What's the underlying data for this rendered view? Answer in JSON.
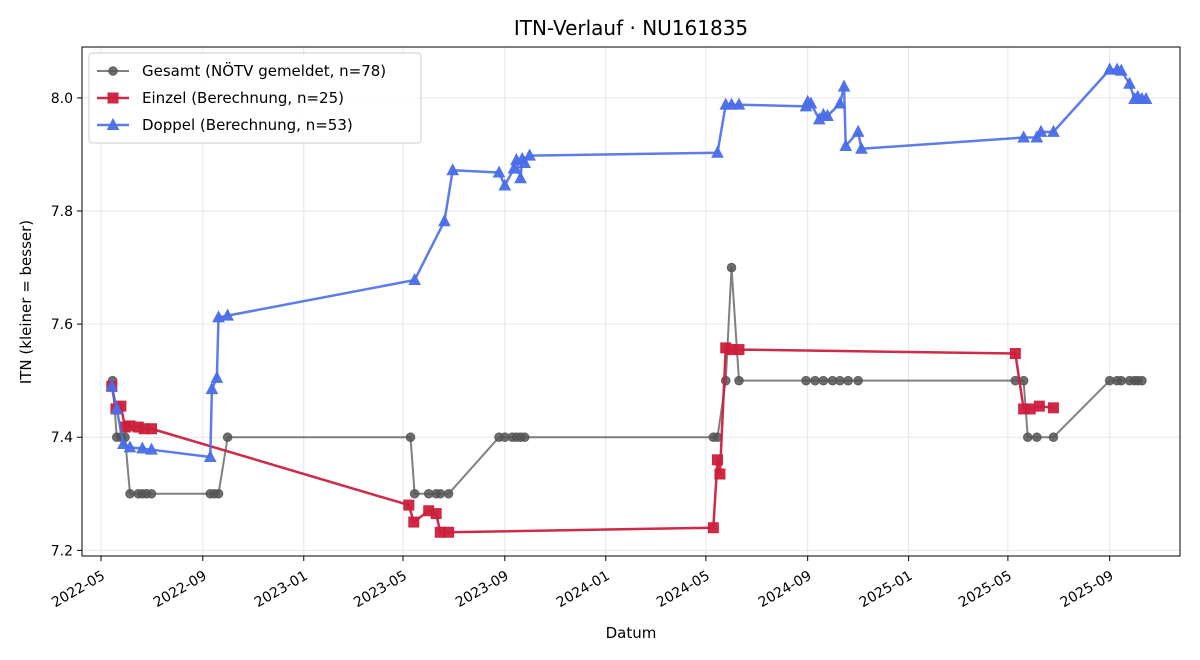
{
  "chart_data": {
    "type": "line",
    "title": "ITN-Verlauf · NU161835",
    "xlabel": "Datum",
    "ylabel": "ITN  (kleiner = besser)",
    "x_type": "date",
    "xlim": [
      "2022-04-08",
      "2025-11-25"
    ],
    "ylim": [
      7.19,
      8.09
    ],
    "x_ticks": [
      "2022-05-01",
      "2022-09-01",
      "2023-01-01",
      "2023-05-01",
      "2023-09-01",
      "2024-01-01",
      "2024-05-01",
      "2024-09-01",
      "2025-01-01",
      "2025-05-01",
      "2025-09-01"
    ],
    "x_tick_labels": [
      "2022-05",
      "2022-09",
      "2023-01",
      "2023-05",
      "2023-09",
      "2024-01",
      "2024-05",
      "2024-09",
      "2025-01",
      "2025-05",
      "2025-09"
    ],
    "y_ticks": [
      7.2,
      7.4,
      7.6,
      7.8,
      8.0
    ],
    "y_tick_labels": [
      "7.2",
      "7.4",
      "7.6",
      "7.8",
      "8.0"
    ],
    "grid": true,
    "legend_position": "top-left",
    "series": [
      {
        "name": "Gesamt (NÖTV gemeldet, n=78)",
        "color": "#555555",
        "marker": "circle",
        "points": [
          [
            "2022-05-15",
            7.5
          ],
          [
            "2022-05-20",
            7.4
          ],
          [
            "2022-05-25",
            7.4
          ],
          [
            "2022-05-30",
            7.4
          ],
          [
            "2022-06-05",
            7.3
          ],
          [
            "2022-06-15",
            7.3
          ],
          [
            "2022-06-20",
            7.3
          ],
          [
            "2022-06-25",
            7.3
          ],
          [
            "2022-07-01",
            7.3
          ],
          [
            "2022-09-10",
            7.3
          ],
          [
            "2022-09-15",
            7.3
          ],
          [
            "2022-09-20",
            7.3
          ],
          [
            "2022-10-01",
            7.4
          ],
          [
            "2023-05-10",
            7.4
          ],
          [
            "2023-05-15",
            7.3
          ],
          [
            "2023-06-01",
            7.3
          ],
          [
            "2023-06-10",
            7.3
          ],
          [
            "2023-06-15",
            7.3
          ],
          [
            "2023-06-25",
            7.3
          ],
          [
            "2023-08-25",
            7.4
          ],
          [
            "2023-09-01",
            7.4
          ],
          [
            "2023-09-10",
            7.4
          ],
          [
            "2023-09-15",
            7.4
          ],
          [
            "2023-09-20",
            7.4
          ],
          [
            "2023-09-25",
            7.4
          ],
          [
            "2024-05-10",
            7.4
          ],
          [
            "2024-05-15",
            7.4
          ],
          [
            "2024-05-25",
            7.5
          ],
          [
            "2024-06-01",
            7.7
          ],
          [
            "2024-06-10",
            7.5
          ],
          [
            "2024-08-30",
            7.5
          ],
          [
            "2024-09-10",
            7.5
          ],
          [
            "2024-09-20",
            7.5
          ],
          [
            "2024-10-01",
            7.5
          ],
          [
            "2024-10-10",
            7.5
          ],
          [
            "2024-10-20",
            7.5
          ],
          [
            "2024-11-01",
            7.5
          ],
          [
            "2025-05-10",
            7.5
          ],
          [
            "2025-05-20",
            7.5
          ],
          [
            "2025-05-25",
            7.4
          ],
          [
            "2025-06-05",
            7.4
          ],
          [
            "2025-06-25",
            7.4
          ],
          [
            "2025-09-01",
            7.5
          ],
          [
            "2025-09-10",
            7.5
          ],
          [
            "2025-09-15",
            7.5
          ],
          [
            "2025-09-25",
            7.5
          ],
          [
            "2025-10-01",
            7.5
          ],
          [
            "2025-10-05",
            7.5
          ],
          [
            "2025-10-10",
            7.5
          ]
        ]
      },
      {
        "name": "Einzel (Berechnung, n=25)",
        "color": "#cc1f3c",
        "marker": "square",
        "points": [
          [
            "2022-05-14",
            7.49
          ],
          [
            "2022-05-19",
            7.45
          ],
          [
            "2022-05-25",
            7.455
          ],
          [
            "2022-05-30",
            7.418
          ],
          [
            "2022-06-05",
            7.42
          ],
          [
            "2022-06-15",
            7.418
          ],
          [
            "2022-06-22",
            7.415
          ],
          [
            "2022-07-01",
            7.415
          ],
          [
            "2023-05-08",
            7.28
          ],
          [
            "2023-05-14",
            7.25
          ],
          [
            "2023-06-01",
            7.27
          ],
          [
            "2023-06-10",
            7.265
          ],
          [
            "2023-06-15",
            7.232
          ],
          [
            "2023-06-25",
            7.232
          ],
          [
            "2024-05-10",
            7.24
          ],
          [
            "2024-05-15",
            7.36
          ],
          [
            "2024-05-18",
            7.335
          ],
          [
            "2024-05-25",
            7.558
          ],
          [
            "2024-06-01",
            7.555
          ],
          [
            "2024-06-10",
            7.555
          ],
          [
            "2025-05-10",
            7.548
          ],
          [
            "2025-05-20",
            7.45
          ],
          [
            "2025-05-28",
            7.45
          ],
          [
            "2025-06-08",
            7.455
          ],
          [
            "2025-06-25",
            7.452
          ]
        ]
      },
      {
        "name": "Doppel (Berechnung, n=53)",
        "color": "#4a6ee8",
        "marker": "triangle",
        "points": [
          [
            "2022-05-14",
            7.49
          ],
          [
            "2022-05-20",
            7.45
          ],
          [
            "2022-05-28",
            7.388
          ],
          [
            "2022-06-05",
            7.382
          ],
          [
            "2022-06-20",
            7.38
          ],
          [
            "2022-07-01",
            7.378
          ],
          [
            "2022-09-10",
            7.365
          ],
          [
            "2022-09-12",
            7.485
          ],
          [
            "2022-09-18",
            7.505
          ],
          [
            "2022-09-20",
            7.612
          ],
          [
            "2022-10-01",
            7.615
          ],
          [
            "2023-05-15",
            7.678
          ],
          [
            "2023-06-20",
            7.782
          ],
          [
            "2023-06-30",
            7.872
          ],
          [
            "2023-08-25",
            7.868
          ],
          [
            "2023-09-01",
            7.845
          ],
          [
            "2023-09-12",
            7.875
          ],
          [
            "2023-09-15",
            7.89
          ],
          [
            "2023-09-20",
            7.858
          ],
          [
            "2023-09-22",
            7.892
          ],
          [
            "2023-09-25",
            7.885
          ],
          [
            "2023-10-01",
            7.898
          ],
          [
            "2024-05-15",
            7.903
          ],
          [
            "2024-05-25",
            7.988
          ],
          [
            "2024-06-01",
            7.988
          ],
          [
            "2024-06-10",
            7.988
          ],
          [
            "2024-08-30",
            7.985
          ],
          [
            "2024-09-01",
            7.993
          ],
          [
            "2024-09-05",
            7.99
          ],
          [
            "2024-09-15",
            7.962
          ],
          [
            "2024-09-20",
            7.97
          ],
          [
            "2024-09-25",
            7.968
          ],
          [
            "2024-10-10",
            7.99
          ],
          [
            "2024-10-15",
            8.02
          ],
          [
            "2024-10-17",
            7.915
          ],
          [
            "2024-11-01",
            7.94
          ],
          [
            "2024-11-05",
            7.91
          ],
          [
            "2025-05-20",
            7.93
          ],
          [
            "2025-06-05",
            7.93
          ],
          [
            "2025-06-10",
            7.94
          ],
          [
            "2025-06-25",
            7.94
          ],
          [
            "2025-09-01",
            8.05
          ],
          [
            "2025-09-10",
            8.05
          ],
          [
            "2025-09-15",
            8.048
          ],
          [
            "2025-09-25",
            8.025
          ],
          [
            "2025-10-01",
            7.998
          ],
          [
            "2025-10-05",
            8.002
          ],
          [
            "2025-10-10",
            7.998
          ],
          [
            "2025-10-15",
            7.998
          ]
        ]
      }
    ]
  }
}
